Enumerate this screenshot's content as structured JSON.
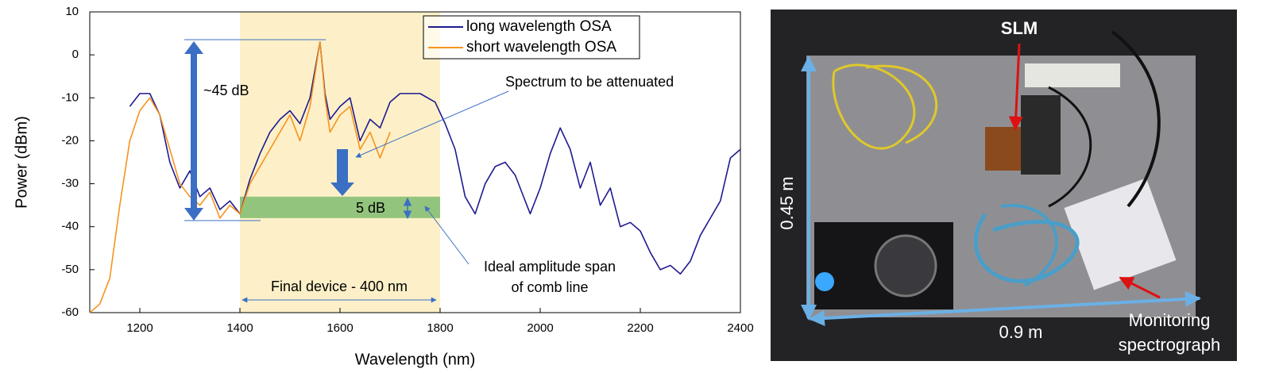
{
  "chart_data": {
    "type": "line",
    "xlabel": "Wavelength (nm)",
    "ylabel": "Power (dBm)",
    "xlim": [
      1100,
      2400
    ],
    "xticks": [
      1200,
      1400,
      1600,
      1800,
      2000,
      2200,
      2400
    ],
    "ylim": [
      -60,
      10
    ],
    "yticks": [
      -60,
      -50,
      -40,
      -30,
      -20,
      -10,
      0,
      10
    ],
    "legend": "upper center",
    "series": [
      {
        "name": "long wavelength OSA",
        "color": "#1f1a8f",
        "x": [
          1180,
          1200,
          1220,
          1240,
          1260,
          1280,
          1300,
          1320,
          1340,
          1360,
          1380,
          1400,
          1420,
          1440,
          1460,
          1480,
          1500,
          1520,
          1540,
          1560,
          1570,
          1580,
          1600,
          1620,
          1640,
          1660,
          1680,
          1700,
          1720,
          1760,
          1790,
          1810,
          1830,
          1850,
          1870,
          1890,
          1910,
          1930,
          1950,
          1970,
          1980,
          2000,
          2020,
          2040,
          2060,
          2080,
          2100,
          2120,
          2140,
          2160,
          2180,
          2200,
          2220,
          2240,
          2260,
          2280,
          2300,
          2320,
          2340,
          2360,
          2380,
          2400
        ],
        "values": [
          -12,
          -9,
          -9,
          -14,
          -25,
          -31,
          -27,
          -33,
          -31,
          -36,
          -34,
          -37,
          -29,
          -23,
          -18,
          -15,
          -13,
          -16,
          -10,
          3,
          -9,
          -15,
          -12,
          -10,
          -20,
          -15,
          -17,
          -11,
          -9,
          -9,
          -11,
          -16,
          -22,
          -33,
          -37,
          -30,
          -26,
          -25,
          -28,
          -34,
          -37,
          -31,
          -23,
          -17,
          -22,
          -31,
          -25,
          -35,
          -31,
          -40,
          -39,
          -41,
          -46,
          -50,
          -49,
          -51,
          -48,
          -42,
          -38,
          -34,
          -24,
          -22
        ]
      },
      {
        "name": "short wavelength OSA",
        "color": "#f7931e",
        "x": [
          1100,
          1120,
          1140,
          1160,
          1180,
          1200,
          1220,
          1240,
          1260,
          1280,
          1300,
          1320,
          1340,
          1360,
          1380,
          1400,
          1420,
          1440,
          1460,
          1480,
          1500,
          1520,
          1540,
          1560,
          1570,
          1580,
          1600,
          1620,
          1640,
          1660,
          1680,
          1700
        ],
        "values": [
          -60,
          -58,
          -52,
          -35,
          -20,
          -13,
          -10,
          -14,
          -22,
          -30,
          -33,
          -35,
          -32,
          -38,
          -35,
          -37,
          -30,
          -26,
          -22,
          -18,
          -14,
          -20,
          -12,
          3,
          -10,
          -18,
          -14,
          -12,
          -22,
          -18,
          -24,
          -18
        ]
      }
    ],
    "highlight": {
      "x": [
        1400,
        1800
      ],
      "color": "#fdf0c8"
    },
    "target_band": {
      "x": [
        1400,
        1800
      ],
      "y": [
        -38,
        -33
      ],
      "color": "#93c47d"
    },
    "annotations": {
      "span": "~45 dB",
      "band": "5 dB",
      "attenuate": "Spectrum to be attenuated",
      "ideal": [
        "Ideal amplitude span",
        "of comb line"
      ],
      "device": "Final device - 400 nm"
    }
  },
  "photo": {
    "slm": "SLM",
    "height": "0.45 m",
    "width": "0.9 m",
    "spectrograph": [
      "Monitoring",
      "spectrograph"
    ]
  }
}
